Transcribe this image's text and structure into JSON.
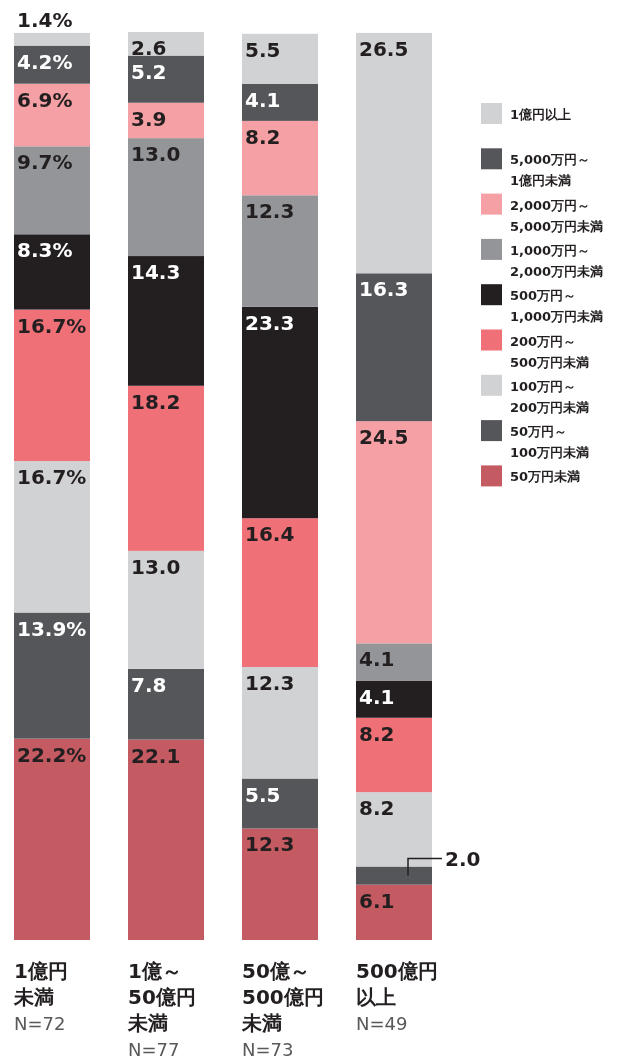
{
  "chart_data": {
    "type": "bar",
    "stacked": true,
    "legend": "right",
    "categories": [
      "1億円未満",
      "1億～50億円未満",
      "50億～500億円未満",
      "500億円以上"
    ],
    "annotations": [
      "N=72",
      "N=77",
      "N=73",
      "N=49"
    ],
    "series": [
      {
        "name": "50万円未満",
        "color": "#c45a62",
        "values": [
          22.2,
          22.1,
          12.3,
          6.1
        ],
        "value_labels": [
          "22.2%",
          "22.1",
          "12.3",
          "6.1"
        ]
      },
      {
        "name": "50万円～\n100万円未満",
        "color": "#55565a",
        "values": [
          13.9,
          7.8,
          5.5,
          2.0
        ],
        "value_labels": [
          "13.9%",
          "7.8",
          "5.5",
          "2.0"
        ]
      },
      {
        "name": "100万円～\n200万円未満",
        "color": "#d1d2d4",
        "values": [
          16.7,
          13.0,
          12.3,
          8.2
        ],
        "value_labels": [
          "16.7%",
          "13.0",
          "12.3",
          "8.2"
        ]
      },
      {
        "name": "200万円～\n500万円未満",
        "color": "#f07078",
        "values": [
          16.7,
          18.2,
          16.4,
          8.2
        ],
        "value_labels": [
          "16.7%",
          "18.2",
          "16.4",
          "8.2"
        ]
      },
      {
        "name": "500万円～\n1,000万円未満",
        "color": "#231f20",
        "values": [
          8.3,
          14.3,
          23.3,
          4.1
        ],
        "value_labels": [
          "8.3%",
          "14.3",
          "23.3",
          "4.1"
        ]
      },
      {
        "name": "1,000万円～\n2,000万円未満",
        "color": "#939598",
        "values": [
          9.7,
          13.0,
          12.3,
          4.1
        ],
        "value_labels": [
          "9.7%",
          "13.0",
          "12.3",
          "4.1"
        ]
      },
      {
        "name": "2,000万円～\n5,000万円未満",
        "color": "#f5a0a5",
        "values": [
          6.9,
          3.9,
          8.2,
          24.5
        ],
        "value_labels": [
          "6.9%",
          "3.9",
          "8.2",
          "24.5"
        ]
      },
      {
        "name": "5,000万円～\n1億円未満",
        "color": "#55565a",
        "values": [
          4.2,
          5.2,
          4.1,
          16.3
        ],
        "value_labels": [
          "4.2%",
          "5.2",
          "4.1",
          "16.3"
        ]
      },
      {
        "name": "1億円以上",
        "color": "#d1d2d4",
        "values": [
          1.4,
          2.6,
          5.5,
          26.5
        ],
        "value_labels": [
          "1.4%",
          "2.6",
          "5.5",
          "26.5"
        ]
      }
    ]
  }
}
